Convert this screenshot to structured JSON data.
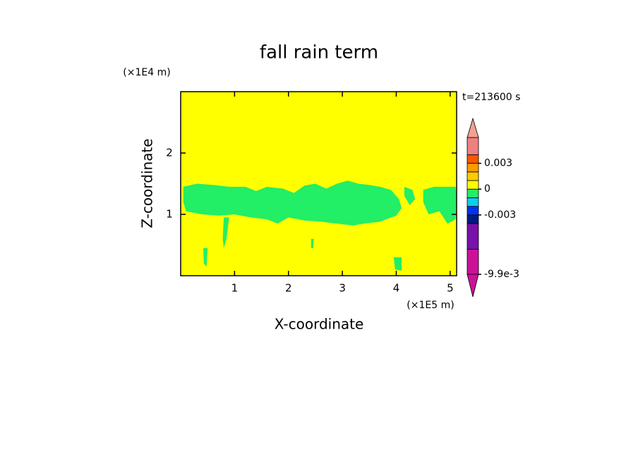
{
  "chart_data": {
    "type": "contour",
    "title": "fall rain term",
    "xlabel": "X-coordinate",
    "ylabel": "Z-coordinate",
    "x_unit": "(×1E5 m)",
    "y_unit": "(×1E4 m)",
    "annotation": "t=213600 s",
    "xlim": [
      0,
      5.12
    ],
    "ylim": [
      0,
      3
    ],
    "xticks": [
      1,
      2,
      3,
      4,
      5
    ],
    "yticks": [
      1,
      2
    ],
    "background_color": "#ffff00",
    "regions": [
      {
        "color": "#22ee66",
        "x": [
          0.05,
          0.3,
          0.6,
          0.9,
          1.2,
          1.4,
          1.6,
          1.9,
          2.1,
          2.3,
          2.5,
          2.7,
          2.9,
          3.1,
          3.3,
          3.5,
          3.7,
          3.9,
          4.05,
          4.1,
          4.0,
          3.7,
          3.4,
          3.2,
          2.9,
          2.6,
          2.3,
          2.0,
          1.8,
          1.6,
          1.3,
          1.0,
          0.7,
          0.4,
          0.1,
          0.05
        ],
        "z": [
          1.45,
          1.5,
          1.48,
          1.45,
          1.45,
          1.38,
          1.45,
          1.42,
          1.35,
          1.47,
          1.5,
          1.42,
          1.5,
          1.55,
          1.5,
          1.48,
          1.45,
          1.4,
          1.25,
          1.1,
          0.98,
          0.88,
          0.85,
          0.82,
          0.85,
          0.88,
          0.9,
          0.95,
          0.85,
          0.92,
          0.95,
          1.0,
          0.98,
          1.0,
          1.05,
          1.2
        ]
      },
      {
        "color": "#22ee66",
        "x": [
          4.5,
          4.7,
          5.1,
          5.12,
          5.1,
          4.95,
          4.8,
          4.6,
          4.5
        ],
        "z": [
          1.4,
          1.45,
          1.45,
          1.3,
          0.92,
          0.85,
          1.05,
          1.0,
          1.2
        ]
      },
      {
        "color": "#22ee66",
        "x": [
          4.15,
          4.3,
          4.35,
          4.25,
          4.15
        ],
        "z": [
          1.45,
          1.4,
          1.25,
          1.15,
          1.3
        ]
      },
      {
        "color": "#22ee66",
        "x": [
          0.8,
          0.9,
          0.85,
          0.8,
          0.78
        ],
        "z": [
          0.95,
          0.95,
          0.6,
          0.45,
          0.6
        ]
      },
      {
        "color": "#22ee66",
        "x": [
          0.42,
          0.5,
          0.48,
          0.43
        ],
        "z": [
          0.45,
          0.45,
          0.15,
          0.2
        ]
      },
      {
        "color": "#22ee66",
        "x": [
          3.95,
          4.1,
          4.1,
          3.98
        ],
        "z": [
          0.3,
          0.3,
          0.08,
          0.1
        ]
      },
      {
        "color": "#22ee66",
        "x": [
          2.42,
          2.47,
          2.46,
          2.42
        ],
        "z": [
          0.6,
          0.6,
          0.45,
          0.45
        ]
      }
    ],
    "colorbar": {
      "levels": [
        -0.0099,
        -0.007,
        -0.004,
        -0.003,
        -0.002,
        -0.001,
        0,
        0.001,
        0.002,
        0.003,
        0.004,
        0.006
      ],
      "colors": [
        "#cc1199",
        "#7711aa",
        "#001a80",
        "#0033ee",
        "#11ccee",
        "#22ee66",
        "#ffff00",
        "#ffcc00",
        "#ff9900",
        "#ff5500",
        "#f08080"
      ],
      "extend_colors": [
        "#f4a090",
        "#cc1199"
      ],
      "ticks": [
        0.003,
        0,
        -0.003,
        {
          "value": -0.0099,
          "label": "-9.9e-3"
        }
      ]
    }
  }
}
